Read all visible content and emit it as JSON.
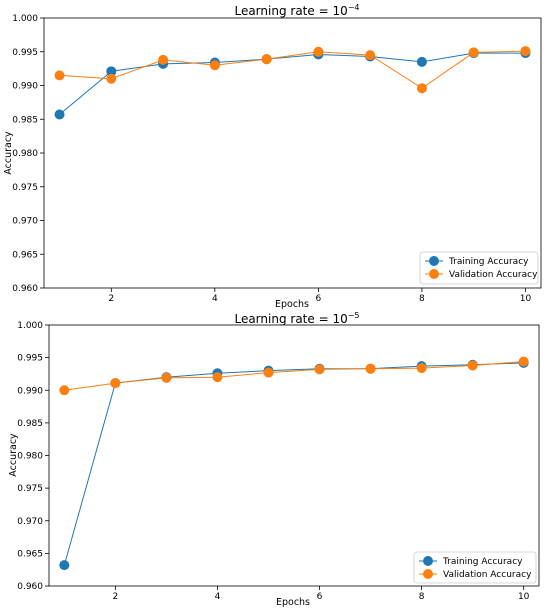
{
  "chart_data": [
    {
      "type": "line",
      "title": "Learning rate = 10",
      "title_exponent": "−4",
      "xlabel": "Epochs",
      "ylabel": "Accuracy",
      "x": [
        1,
        2,
        3,
        4,
        5,
        6,
        7,
        8,
        9,
        10
      ],
      "xlim": [
        0.7,
        10.3
      ],
      "ylim": [
        0.96,
        1.0
      ],
      "xticks": [
        2,
        4,
        6,
        8,
        10
      ],
      "xtick_labels": [
        "2",
        "4",
        "6",
        "8",
        "10"
      ],
      "yticks": [
        0.96,
        0.965,
        0.97,
        0.975,
        0.98,
        0.985,
        0.99,
        0.995,
        1.0
      ],
      "ytick_labels": [
        "0.960",
        "0.965",
        "0.970",
        "0.975",
        "0.980",
        "0.985",
        "0.990",
        "0.995",
        "1.000"
      ],
      "legend_position": "lower-right",
      "grid": false,
      "series": [
        {
          "name": "Training Accuracy",
          "color": "#1f77b4",
          "values": [
            0.9857,
            0.9921,
            0.9932,
            0.9934,
            0.9939,
            0.9946,
            0.9943,
            0.9935,
            0.9948,
            0.9948
          ]
        },
        {
          "name": "Validation Accuracy",
          "color": "#ff7f0e",
          "values": [
            0.9915,
            0.991,
            0.9938,
            0.993,
            0.9939,
            0.995,
            0.9945,
            0.9896,
            0.9949,
            0.9951
          ]
        }
      ]
    },
    {
      "type": "line",
      "title": "Learning rate = 10",
      "title_exponent": "−5",
      "xlabel": "Epochs",
      "ylabel": "Accuracy",
      "x": [
        1,
        2,
        3,
        4,
        5,
        6,
        7,
        8,
        9,
        10
      ],
      "xlim": [
        0.7,
        10.3
      ],
      "ylim": [
        0.96,
        1.0
      ],
      "xticks": [
        2,
        4,
        6,
        8,
        10
      ],
      "xtick_labels": [
        "2",
        "4",
        "6",
        "8",
        "10"
      ],
      "yticks": [
        0.96,
        0.965,
        0.97,
        0.975,
        0.98,
        0.985,
        0.99,
        0.995,
        1.0
      ],
      "ytick_labels": [
        "0.960",
        "0.965",
        "0.970",
        "0.975",
        "0.980",
        "0.985",
        "0.990",
        "0.995",
        "1.000"
      ],
      "legend_position": "lower-right",
      "grid": false,
      "series": [
        {
          "name": "Training Accuracy",
          "color": "#1f77b4",
          "values": [
            0.9632,
            0.9911,
            0.992,
            0.9926,
            0.993,
            0.9933,
            0.9933,
            0.9937,
            0.9939,
            0.9942
          ]
        },
        {
          "name": "Validation Accuracy",
          "color": "#ff7f0e",
          "values": [
            0.99,
            0.9911,
            0.9919,
            0.992,
            0.9927,
            0.9932,
            0.9933,
            0.9934,
            0.9938,
            0.9944
          ]
        }
      ]
    }
  ]
}
